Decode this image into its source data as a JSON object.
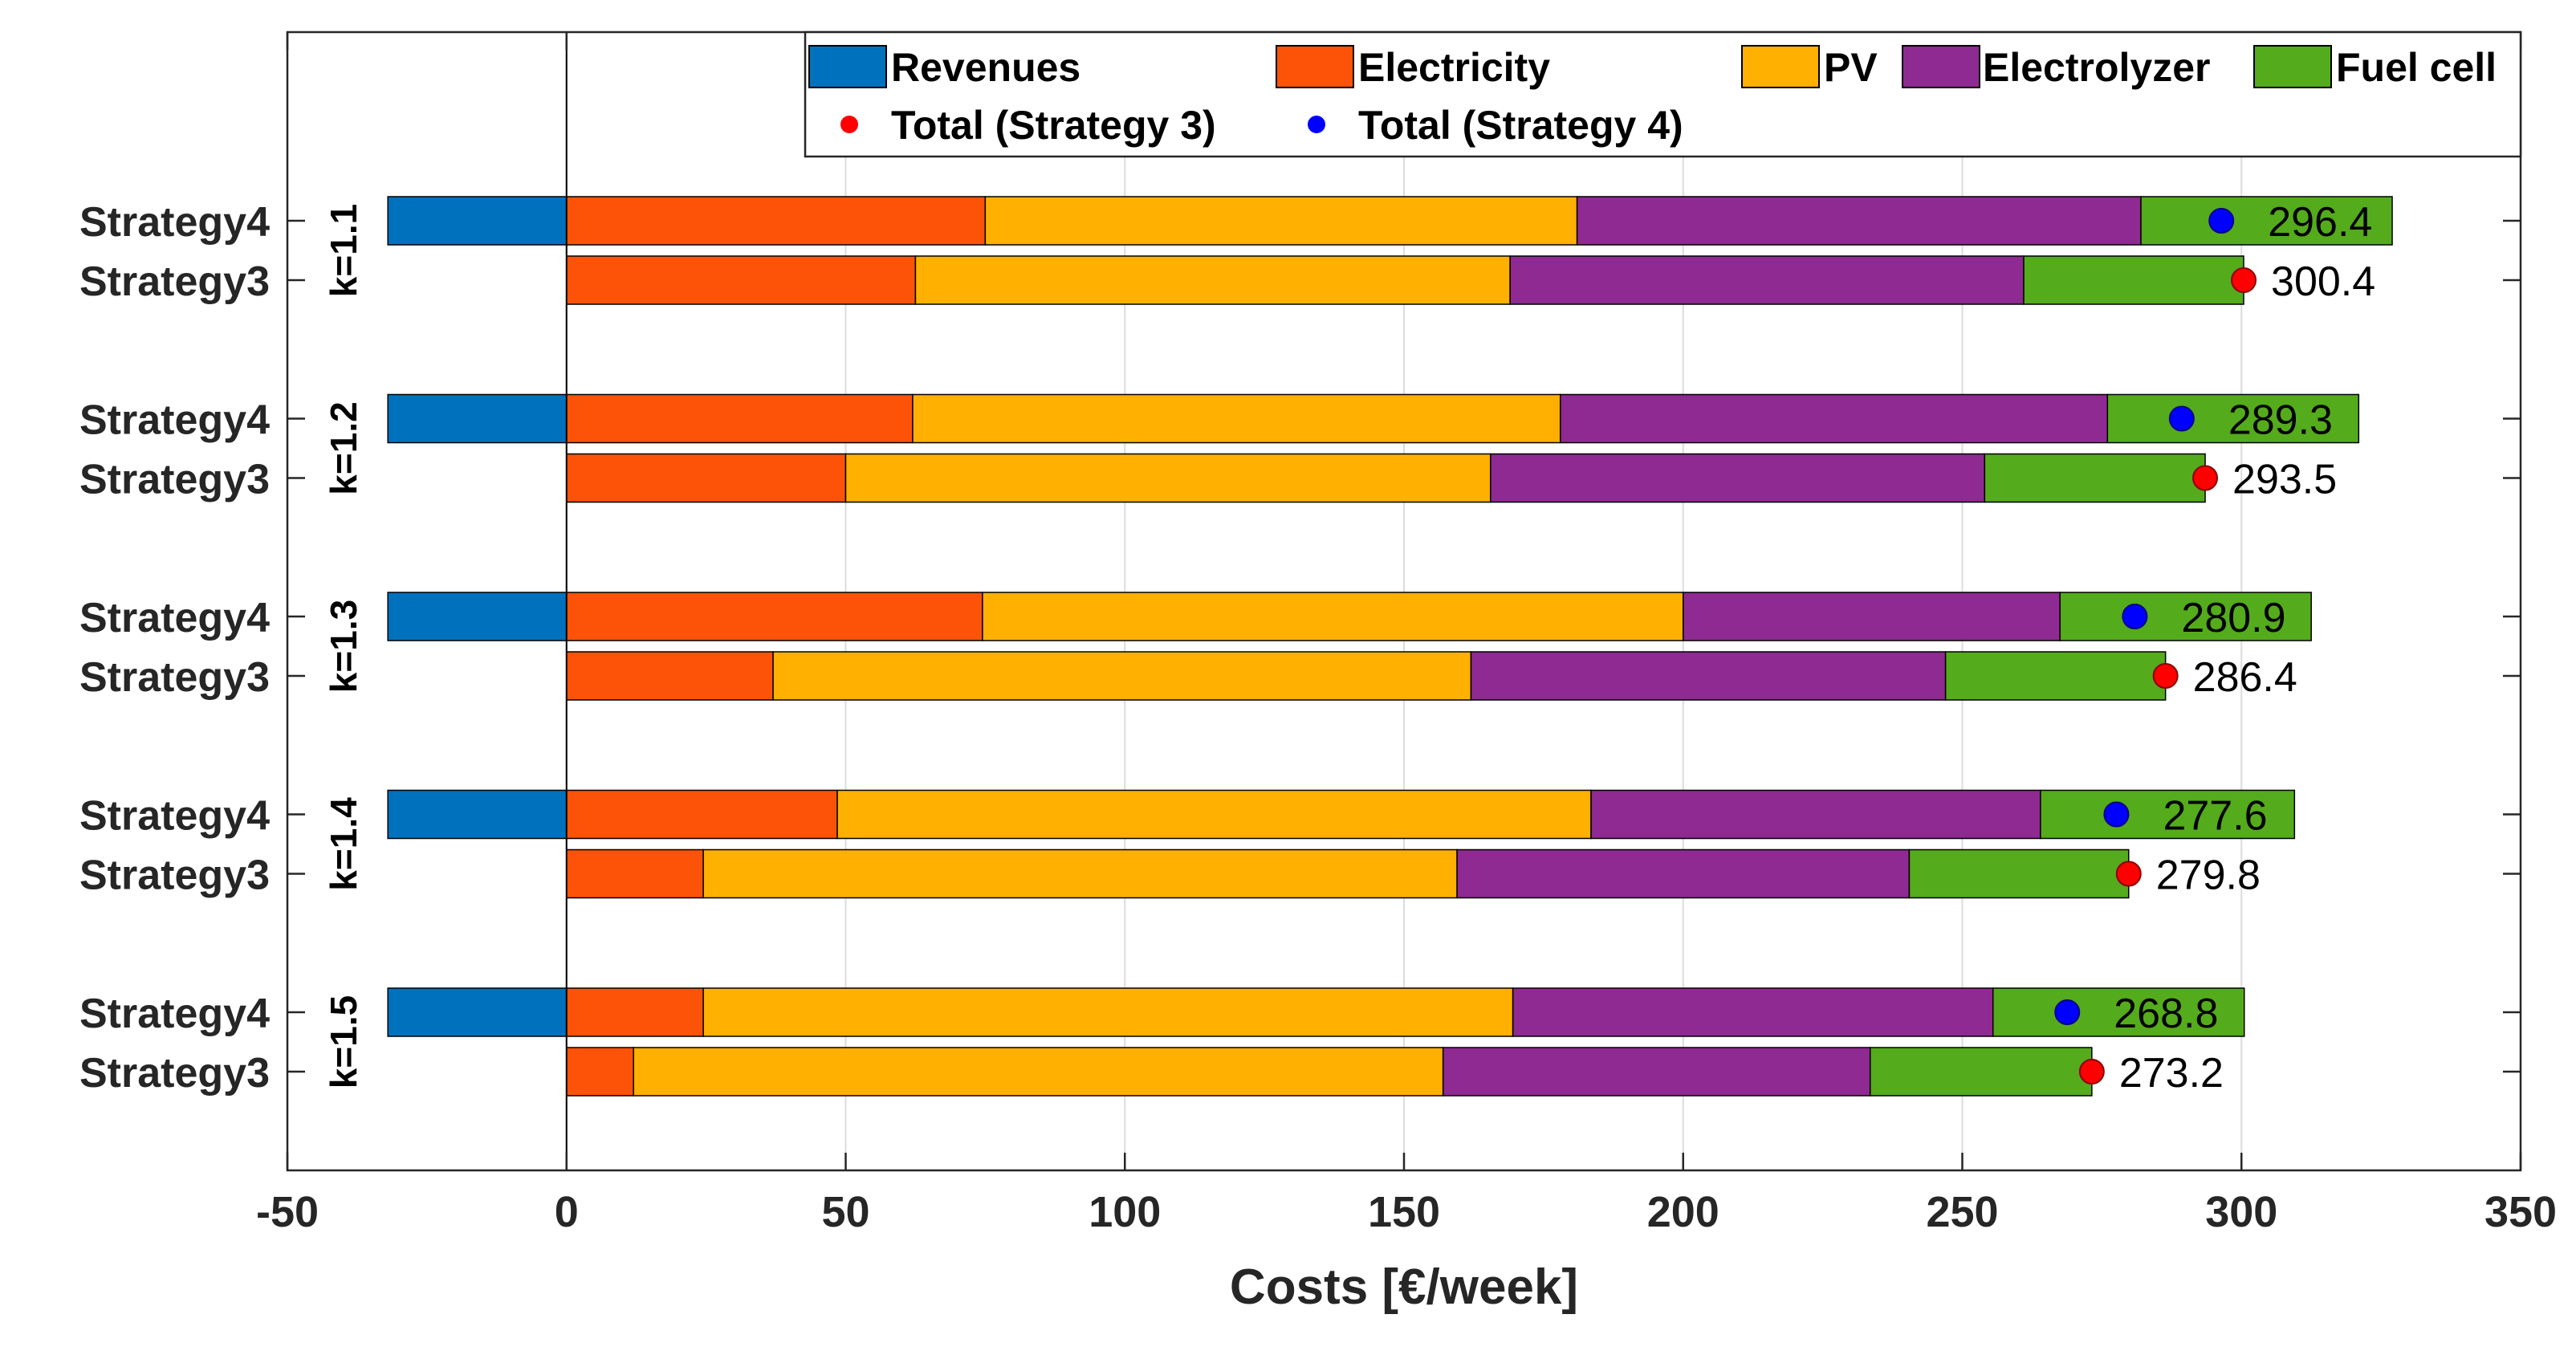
{
  "chart_data": {
    "type": "bar",
    "orientation": "horizontal",
    "stacked": true,
    "xlabel": "Costs [€/week]",
    "xlim": [
      -50,
      350
    ],
    "xticks": [
      -50,
      0,
      50,
      100,
      150,
      200,
      250,
      300,
      350
    ],
    "grid": true,
    "legend_position": "top-right",
    "components": [
      {
        "name": "Revenues",
        "color": "#0072bd"
      },
      {
        "name": "Electricity",
        "color": "#fc5308"
      },
      {
        "name": "PV",
        "color": "#ffb000"
      },
      {
        "name": "Electrolyzer",
        "color": "#8e2a91"
      },
      {
        "name": "Fuel cell",
        "color": "#54ab1b"
      }
    ],
    "totals_legend": [
      {
        "name": "Total (Strategy 3)",
        "color": "#ff0000"
      },
      {
        "name": "Total (Strategy 4)",
        "color": "#0000ff"
      }
    ],
    "groups": [
      {
        "label": "k=1.1",
        "bars": [
          {
            "name": "Strategy4",
            "values": [
              -32,
              75,
              106,
              101,
              45
            ],
            "total": 296.4,
            "total_label": "296.4"
          },
          {
            "name": "Strategy3",
            "values": [
              0,
              62.5,
              106.5,
              92,
              39.4
            ],
            "total": 300.4,
            "total_label": "300.4"
          }
        ]
      },
      {
        "label": "k=1.2",
        "bars": [
          {
            "name": "Strategy4",
            "values": [
              -32,
              62,
              116,
              98,
              45
            ],
            "total": 289.3,
            "total_label": "289.3"
          },
          {
            "name": "Strategy3",
            "values": [
              0,
              50,
              115.5,
              88.5,
              39.5
            ],
            "total": 293.5,
            "total_label": "293.5"
          }
        ]
      },
      {
        "label": "k=1.3",
        "bars": [
          {
            "name": "Strategy4",
            "values": [
              -32,
              74.5,
              125.5,
              67.5,
              45
            ],
            "total": 280.9,
            "total_label": "280.9"
          },
          {
            "name": "Strategy3",
            "values": [
              0,
              37,
              125,
              85,
              39.4
            ],
            "total": 286.4,
            "total_label": "286.4"
          }
        ]
      },
      {
        "label": "k=1.4",
        "bars": [
          {
            "name": "Strategy4",
            "values": [
              -32,
              48.5,
              135,
              80.5,
              45.5
            ],
            "total": 277.6,
            "total_label": "277.6"
          },
          {
            "name": "Strategy3",
            "values": [
              0,
              24.5,
              135,
              81,
              39.3
            ],
            "total": 279.8,
            "total_label": "279.8"
          }
        ]
      },
      {
        "label": "k=1.5",
        "bars": [
          {
            "name": "Strategy4",
            "values": [
              -32,
              24.5,
              145,
              86,
              45
            ],
            "total": 268.8,
            "total_label": "268.8"
          },
          {
            "name": "Strategy3",
            "values": [
              0,
              12,
              145,
              76.5,
              39.7
            ],
            "total": 273.2,
            "total_label": "273.2"
          }
        ]
      }
    ]
  }
}
